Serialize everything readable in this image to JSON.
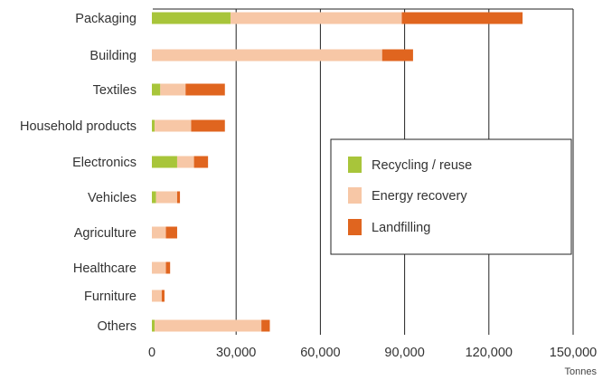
{
  "chart_data": {
    "type": "bar",
    "orientation": "horizontal",
    "stacked": true,
    "categories": [
      "Packaging",
      "Building",
      "Textiles",
      "Household products",
      "Electronics",
      "Vehicles",
      "Agriculture",
      "Healthcare",
      "Furniture",
      "Others"
    ],
    "series": [
      {
        "name": "Recycling / reuse",
        "color": "#a8c53a",
        "values": [
          28000,
          0,
          3000,
          1000,
          9000,
          1500,
          0,
          0,
          0,
          1000
        ]
      },
      {
        "name": "Energy recovery",
        "color": "#f7c7a6",
        "values": [
          61000,
          82000,
          9000,
          13000,
          6000,
          7500,
          5000,
          5000,
          3500,
          38000
        ]
      },
      {
        "name": "Landfilling",
        "color": "#e0651f",
        "values": [
          43000,
          11000,
          14000,
          12000,
          5000,
          1000,
          4000,
          1500,
          1000,
          3000
        ]
      }
    ],
    "xlim": [
      0,
      150000
    ],
    "xticks": [
      0,
      30000,
      60000,
      90000,
      120000,
      150000
    ],
    "xtick_labels": [
      "0",
      "30,000",
      "60,000",
      "90,000",
      "120,000",
      "150,000"
    ],
    "xlabel": "Tonnes",
    "title": "",
    "grid": true,
    "legend_position": "center-right"
  }
}
